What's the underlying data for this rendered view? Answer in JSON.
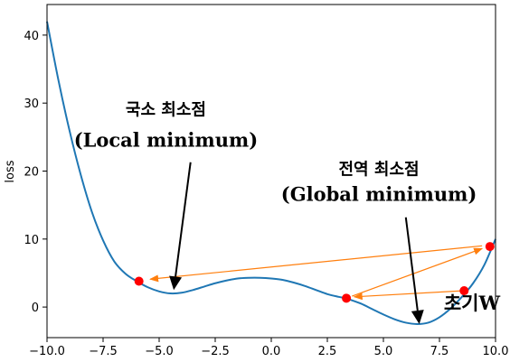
{
  "chart_data": {
    "type": "line",
    "title": "",
    "xlabel": "",
    "ylabel": "loss",
    "xlim": [
      -10,
      10
    ],
    "ylim": [
      -4.5,
      44.5
    ],
    "x_ticks": [
      -10,
      -7.5,
      -5,
      -2.5,
      0,
      2.5,
      5,
      7.5,
      10
    ],
    "x_tick_labels": [
      "−10.0",
      "−7.5",
      "−5.0",
      "−2.5",
      "0.0",
      "2.5",
      "5.0",
      "7.5",
      "10.0"
    ],
    "y_ticks": [
      0,
      10,
      20,
      30,
      40
    ],
    "y_tick_labels": [
      "0",
      "10",
      "20",
      "30",
      "40"
    ],
    "grid": false,
    "curve": {
      "name": "loss",
      "color": "#1f77b4",
      "points": [
        [
          -10,
          42
        ],
        [
          -9.5,
          33.5
        ],
        [
          -9,
          26
        ],
        [
          -8.5,
          19.5
        ],
        [
          -8,
          14
        ],
        [
          -7.5,
          9.8
        ],
        [
          -7,
          6.7
        ],
        [
          -6.5,
          4.9
        ],
        [
          -6,
          3.8
        ],
        [
          -5.5,
          2.9
        ],
        [
          -5,
          2.3
        ],
        [
          -4.5,
          2.0
        ],
        [
          -4,
          2.1
        ],
        [
          -3.5,
          2.5
        ],
        [
          -3,
          3.0
        ],
        [
          -2.5,
          3.5
        ],
        [
          -2,
          3.9
        ],
        [
          -1.5,
          4.2
        ],
        [
          -1,
          4.3
        ],
        [
          -0.5,
          4.3
        ],
        [
          0,
          4.2
        ],
        [
          0.5,
          4.0
        ],
        [
          1,
          3.6
        ],
        [
          1.5,
          3.1
        ],
        [
          2,
          2.5
        ],
        [
          2.5,
          1.9
        ],
        [
          3,
          1.5
        ],
        [
          3.3,
          1.3
        ],
        [
          3.5,
          1.1
        ],
        [
          4,
          0.5
        ],
        [
          4.5,
          -0.3
        ],
        [
          5,
          -1.1
        ],
        [
          5.5,
          -1.8
        ],
        [
          6,
          -2.3
        ],
        [
          6.5,
          -2.5
        ],
        [
          7,
          -2.3
        ],
        [
          7.5,
          -1.5
        ],
        [
          8,
          -0.2
        ],
        [
          8.5,
          1.5
        ],
        [
          9,
          3.5
        ],
        [
          9.5,
          6.2
        ],
        [
          10,
          10
        ]
      ]
    },
    "points": [
      {
        "x": -5.9,
        "y": 3.8,
        "color": "#ff0000"
      },
      {
        "x": 3.35,
        "y": 1.3,
        "color": "#ff0000"
      },
      {
        "x": 8.6,
        "y": 2.4,
        "color": "#ff0000"
      },
      {
        "x": 9.75,
        "y": 8.9,
        "color": "#ff0000"
      }
    ],
    "step_arrows": [
      {
        "from": [
          8.6,
          2.4
        ],
        "to": [
          3.7,
          1.5
        ]
      },
      {
        "from": [
          3.6,
          1.6
        ],
        "to": [
          9.4,
          8.6
        ]
      },
      {
        "from": [
          9.4,
          9.0
        ],
        "to": [
          -5.4,
          4.1
        ]
      }
    ],
    "arrow_color": "#ff7f0e",
    "annotations": [
      {
        "ko": "국소 최소점",
        "en": "(Local minimum)",
        "text_x": -4.7,
        "ko_y": 28.2,
        "en_y": 23.6,
        "arrow_from": [
          -3.6,
          21.3
        ],
        "arrow_to": [
          -4.35,
          2.5
        ]
      },
      {
        "ko": "전역 최소점",
        "en": "(Global minimum)",
        "text_x": 4.8,
        "ko_y": 19.5,
        "en_y": 15.6,
        "arrow_from": [
          6.0,
          13.2
        ],
        "arrow_to": [
          6.6,
          -2.5
        ]
      }
    ],
    "init_label": {
      "text": "초기W",
      "x": 8.95,
      "y": -0.4
    }
  }
}
